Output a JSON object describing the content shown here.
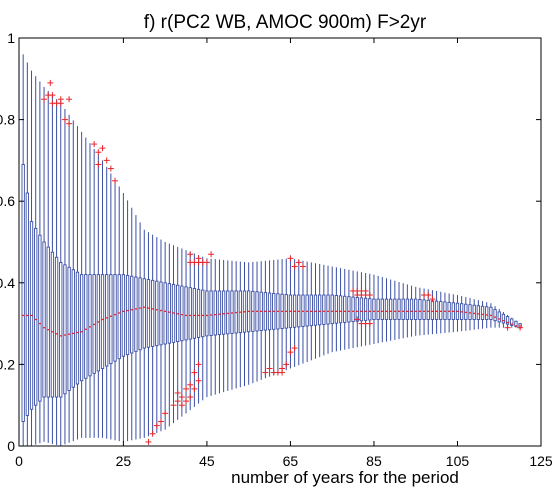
{
  "chart_data": {
    "type": "boxplot",
    "title": "f) r(PC2 WB, AMOC 900m) F>2yr",
    "xlabel": "number of years for the period",
    "ylabel": "",
    "xlim": [
      0,
      125
    ],
    "ylim": [
      0,
      1
    ],
    "xticks": [
      0,
      25,
      45,
      65,
      85,
      105,
      125
    ],
    "yticks": [
      0,
      0.2,
      0.4,
      0.6,
      0.8,
      1
    ],
    "xtick_labels": [
      "0",
      "25",
      "45",
      "65",
      "85",
      "105",
      "125"
    ],
    "ytick_labels": [
      "0",
      "0.2",
      "0.4",
      "0.6",
      "0.8",
      "1"
    ],
    "grid": false,
    "box_color": "#3a4fa6",
    "median_color": "#e8262b",
    "outlier_color": "#e8262b",
    "envelope": [
      {
        "x": 1,
        "whisker_low": 0.0,
        "q1": 0.06,
        "median": 0.32,
        "q3": 0.69,
        "whisker_high": 0.96
      },
      {
        "x": 3,
        "whisker_low": 0.0,
        "q1": 0.09,
        "median": 0.32,
        "q3": 0.55,
        "whisker_high": 0.92
      },
      {
        "x": 6,
        "whisker_low": 0.01,
        "q1": 0.12,
        "median": 0.29,
        "q3": 0.5,
        "whisker_high": 0.88
      },
      {
        "x": 10,
        "whisker_low": 0.0,
        "q1": 0.12,
        "median": 0.27,
        "q3": 0.45,
        "whisker_high": 0.84
      },
      {
        "x": 15,
        "whisker_low": 0.02,
        "q1": 0.16,
        "median": 0.28,
        "q3": 0.42,
        "whisker_high": 0.77
      },
      {
        "x": 20,
        "whisker_low": 0.02,
        "q1": 0.19,
        "median": 0.31,
        "q3": 0.42,
        "whisker_high": 0.7
      },
      {
        "x": 25,
        "whisker_low": 0.01,
        "q1": 0.22,
        "median": 0.33,
        "q3": 0.42,
        "whisker_high": 0.62
      },
      {
        "x": 30,
        "whisker_low": 0.02,
        "q1": 0.24,
        "median": 0.34,
        "q3": 0.41,
        "whisker_high": 0.53
      },
      {
        "x": 35,
        "whisker_low": 0.04,
        "q1": 0.25,
        "median": 0.33,
        "q3": 0.4,
        "whisker_high": 0.5
      },
      {
        "x": 40,
        "whisker_low": 0.08,
        "q1": 0.26,
        "median": 0.32,
        "q3": 0.39,
        "whisker_high": 0.48
      },
      {
        "x": 45,
        "whisker_low": 0.12,
        "q1": 0.27,
        "median": 0.32,
        "q3": 0.38,
        "whisker_high": 0.46
      },
      {
        "x": 55,
        "whisker_low": 0.15,
        "q1": 0.28,
        "median": 0.33,
        "q3": 0.38,
        "whisker_high": 0.45
      },
      {
        "x": 65,
        "whisker_low": 0.19,
        "q1": 0.29,
        "median": 0.33,
        "q3": 0.37,
        "whisker_high": 0.46
      },
      {
        "x": 75,
        "whisker_low": 0.23,
        "q1": 0.3,
        "median": 0.33,
        "q3": 0.37,
        "whisker_high": 0.44
      },
      {
        "x": 85,
        "whisker_low": 0.25,
        "q1": 0.31,
        "median": 0.33,
        "q3": 0.36,
        "whisker_high": 0.42
      },
      {
        "x": 95,
        "whisker_low": 0.27,
        "q1": 0.31,
        "median": 0.33,
        "q3": 0.36,
        "whisker_high": 0.39
      },
      {
        "x": 105,
        "whisker_low": 0.28,
        "q1": 0.31,
        "median": 0.33,
        "q3": 0.35,
        "whisker_high": 0.37
      },
      {
        "x": 113,
        "whisker_low": 0.29,
        "q1": 0.31,
        "median": 0.32,
        "q3": 0.34,
        "whisker_high": 0.35
      },
      {
        "x": 120,
        "whisker_low": 0.29,
        "q1": 0.29,
        "median": 0.29,
        "q3": 0.3,
        "whisker_high": 0.3
      }
    ],
    "outliers": [
      {
        "x": 6,
        "y": 0.85
      },
      {
        "x": 7,
        "y": 0.86
      },
      {
        "x": 7.5,
        "y": 0.89
      },
      {
        "x": 8,
        "y": 0.86
      },
      {
        "x": 8,
        "y": 0.84
      },
      {
        "x": 9,
        "y": 0.84
      },
      {
        "x": 10,
        "y": 0.85
      },
      {
        "x": 10,
        "y": 0.84
      },
      {
        "x": 11,
        "y": 0.8
      },
      {
        "x": 12,
        "y": 0.85
      },
      {
        "x": 12,
        "y": 0.79
      },
      {
        "x": 18,
        "y": 0.74
      },
      {
        "x": 19,
        "y": 0.72
      },
      {
        "x": 20,
        "y": 0.73
      },
      {
        "x": 21,
        "y": 0.7
      },
      {
        "x": 19,
        "y": 0.69
      },
      {
        "x": 22,
        "y": 0.68
      },
      {
        "x": 23,
        "y": 0.65
      },
      {
        "x": 31,
        "y": 0.01
      },
      {
        "x": 32,
        "y": 0.03
      },
      {
        "x": 33,
        "y": 0.05
      },
      {
        "x": 34,
        "y": 0.06
      },
      {
        "x": 35,
        "y": 0.08
      },
      {
        "x": 37,
        "y": 0.1
      },
      {
        "x": 38,
        "y": 0.11
      },
      {
        "x": 38,
        "y": 0.13
      },
      {
        "x": 39,
        "y": 0.1
      },
      {
        "x": 39,
        "y": 0.12
      },
      {
        "x": 40,
        "y": 0.11
      },
      {
        "x": 40,
        "y": 0.14
      },
      {
        "x": 41,
        "y": 0.12
      },
      {
        "x": 41,
        "y": 0.15
      },
      {
        "x": 42,
        "y": 0.14
      },
      {
        "x": 42,
        "y": 0.18
      },
      {
        "x": 43,
        "y": 0.16
      },
      {
        "x": 43,
        "y": 0.2
      },
      {
        "x": 41,
        "y": 0.47
      },
      {
        "x": 41,
        "y": 0.45
      },
      {
        "x": 42,
        "y": 0.45
      },
      {
        "x": 43,
        "y": 0.46
      },
      {
        "x": 43,
        "y": 0.45
      },
      {
        "x": 44,
        "y": 0.45
      },
      {
        "x": 45,
        "y": 0.45
      },
      {
        "x": 46,
        "y": 0.47
      },
      {
        "x": 59,
        "y": 0.18
      },
      {
        "x": 60,
        "y": 0.19
      },
      {
        "x": 61,
        "y": 0.18
      },
      {
        "x": 62,
        "y": 0.18
      },
      {
        "x": 63,
        "y": 0.19
      },
      {
        "x": 63,
        "y": 0.18
      },
      {
        "x": 64,
        "y": 0.2
      },
      {
        "x": 65,
        "y": 0.23
      },
      {
        "x": 66,
        "y": 0.24
      },
      {
        "x": 65,
        "y": 0.46
      },
      {
        "x": 66,
        "y": 0.44
      },
      {
        "x": 67,
        "y": 0.45
      },
      {
        "x": 68,
        "y": 0.44
      },
      {
        "x": 80,
        "y": 0.38
      },
      {
        "x": 81,
        "y": 0.37
      },
      {
        "x": 81,
        "y": 0.38
      },
      {
        "x": 82,
        "y": 0.37
      },
      {
        "x": 82,
        "y": 0.38
      },
      {
        "x": 83,
        "y": 0.37
      },
      {
        "x": 83,
        "y": 0.38
      },
      {
        "x": 84,
        "y": 0.37
      },
      {
        "x": 81,
        "y": 0.31
      },
      {
        "x": 82,
        "y": 0.3
      },
      {
        "x": 83,
        "y": 0.3
      },
      {
        "x": 84,
        "y": 0.3
      },
      {
        "x": 97,
        "y": 0.37
      },
      {
        "x": 98,
        "y": 0.37
      },
      {
        "x": 99,
        "y": 0.36
      },
      {
        "x": 117,
        "y": 0.29
      },
      {
        "x": 120,
        "y": 0.29
      }
    ]
  }
}
